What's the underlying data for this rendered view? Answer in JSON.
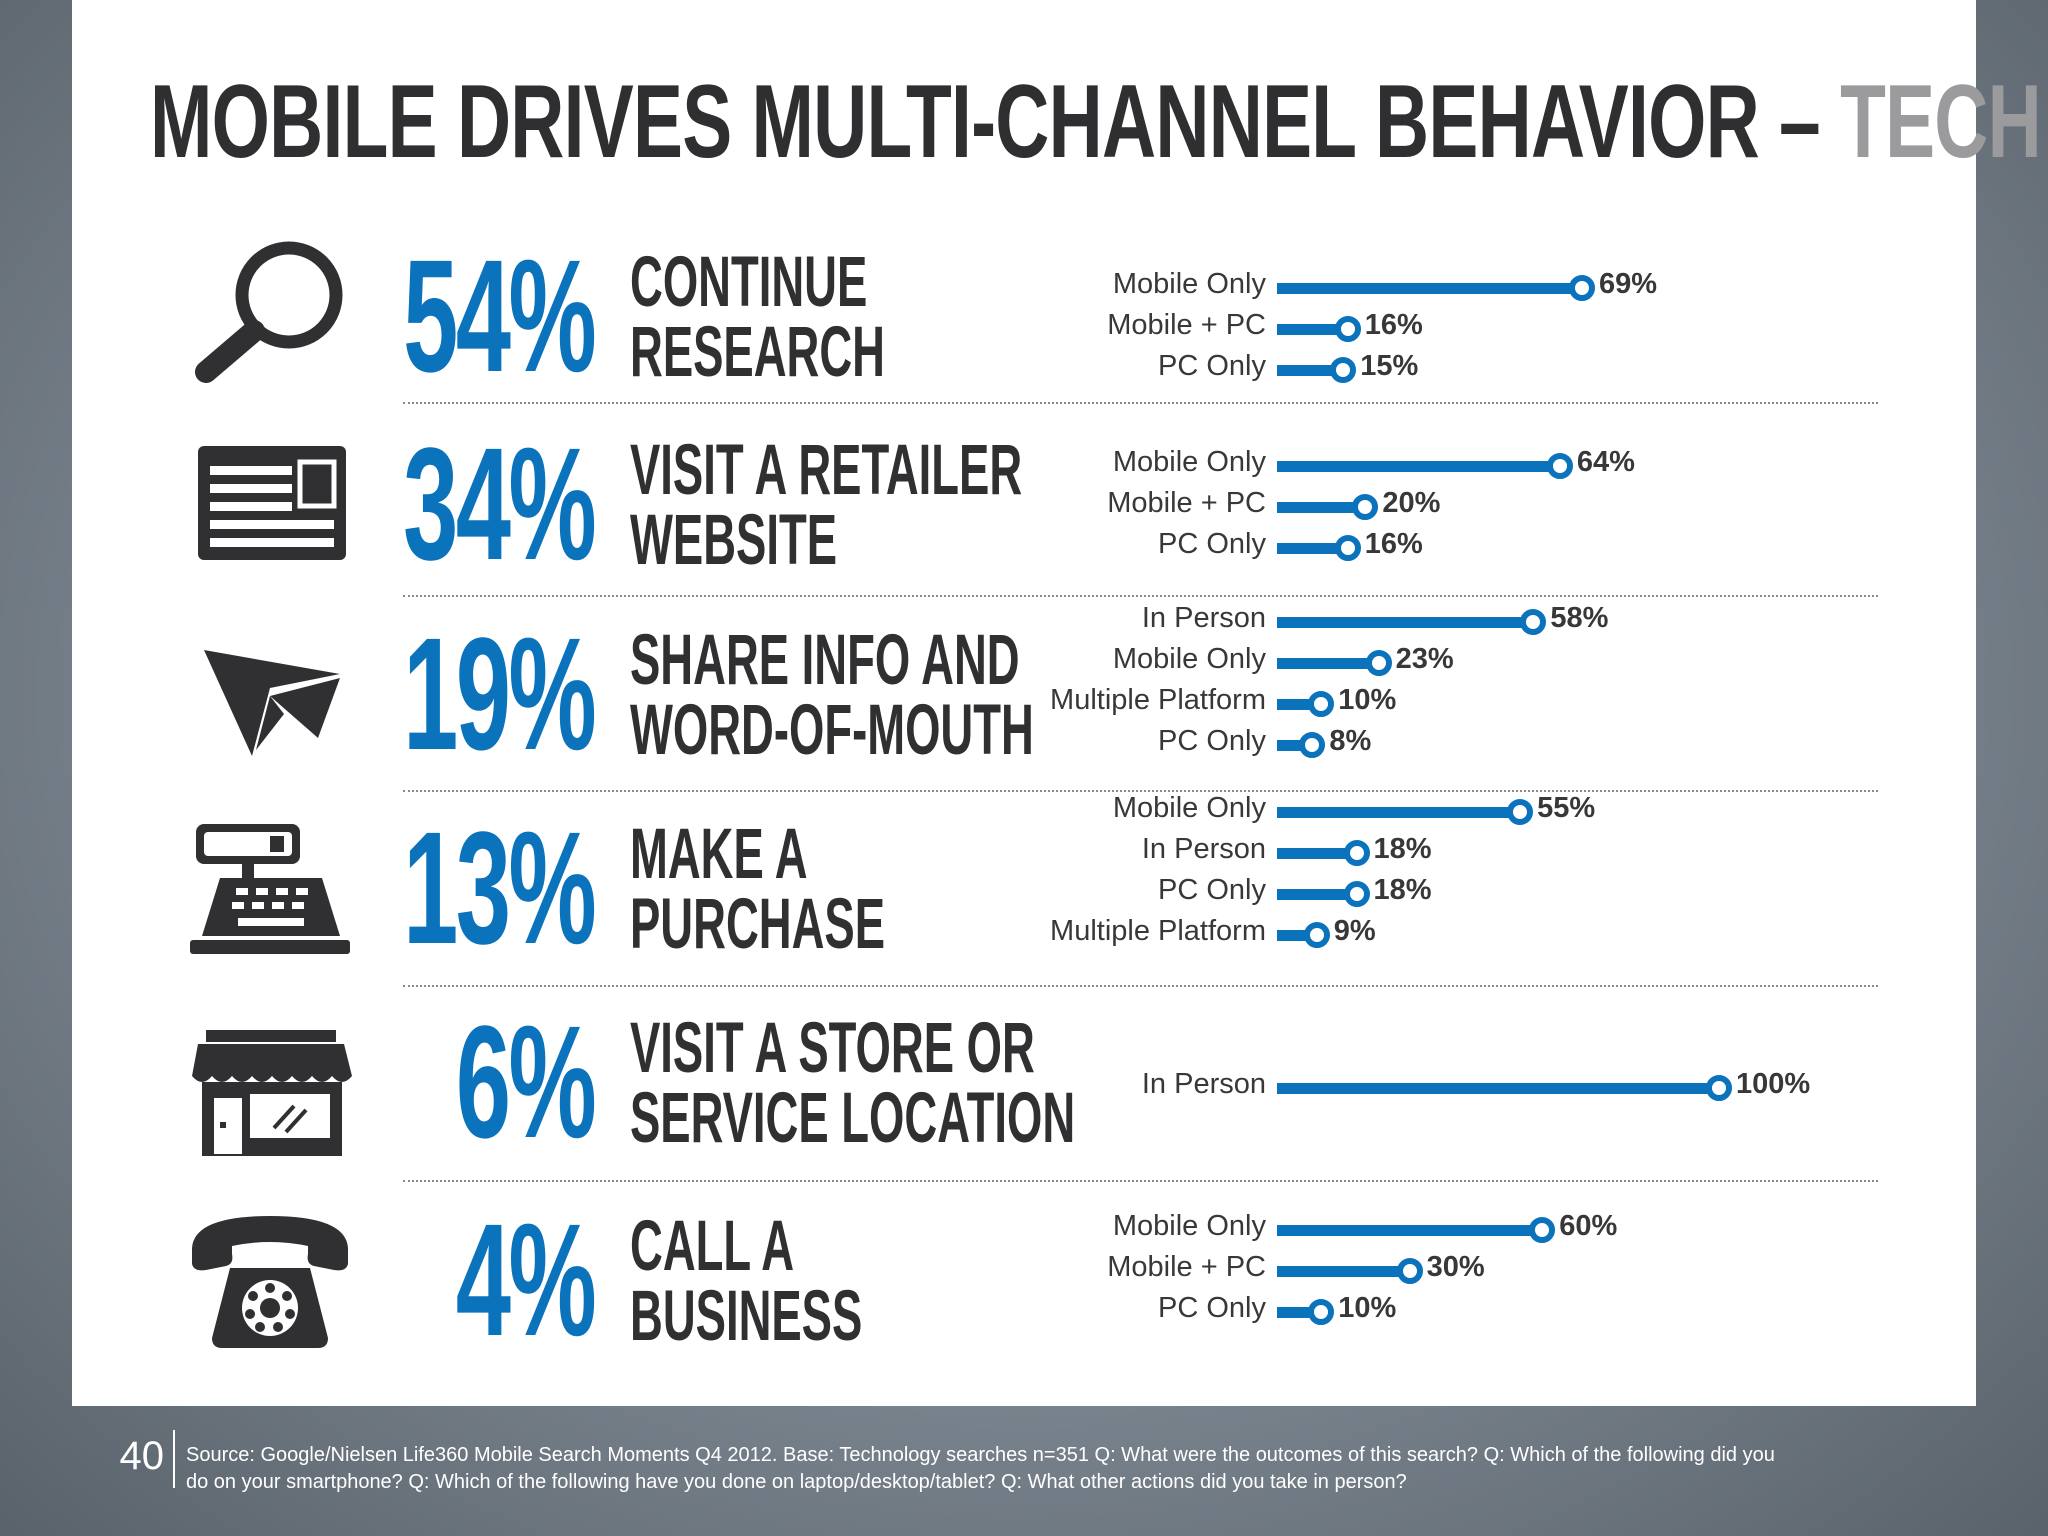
{
  "title": {
    "main": "MOBILE DRIVES MULTI-CHANNEL BEHAVIOR – ",
    "highlight": "TECH"
  },
  "colors": {
    "accent": "#0b72bc",
    "dark": "#303032",
    "grey": "#9b9b9d"
  },
  "rows": [
    {
      "icon": "magnifier-icon",
      "pct": "54%",
      "line1": "CONTINUE",
      "line2": "RESEARCH"
    },
    {
      "icon": "website-icon",
      "pct": "34%",
      "line1": "VISIT A RETAILER",
      "line2": "WEBSITE"
    },
    {
      "icon": "paper-plane-icon",
      "pct": "19%",
      "line1": "SHARE INFO AND",
      "line2": "WORD-OF-MOUTH"
    },
    {
      "icon": "cash-register-icon",
      "pct": "13%",
      "line1": "MAKE A",
      "line2": "PURCHASE"
    },
    {
      "icon": "storefront-icon",
      "pct": "6%",
      "line1": "VISIT A STORE OR",
      "line2": "SERVICE LOCATION"
    },
    {
      "icon": "telephone-icon",
      "pct": "4%",
      "line1": "CALL A",
      "line2": "BUSINESS"
    }
  ],
  "chart_data": [
    {
      "type": "bar",
      "orientation": "horizontal",
      "xlim": [
        0,
        100
      ],
      "categories": [
        "Mobile Only",
        "Mobile + PC",
        "PC Only"
      ],
      "values": [
        69,
        16,
        15
      ],
      "labels": [
        "69%",
        "16%",
        "15%"
      ]
    },
    {
      "type": "bar",
      "orientation": "horizontal",
      "xlim": [
        0,
        100
      ],
      "categories": [
        "Mobile Only",
        "Mobile + PC",
        "PC Only"
      ],
      "values": [
        64,
        20,
        16
      ],
      "labels": [
        "64%",
        "20%",
        "16%"
      ]
    },
    {
      "type": "bar",
      "orientation": "horizontal",
      "xlim": [
        0,
        100
      ],
      "categories": [
        "In Person",
        "Mobile Only",
        "Multiple Platform",
        "PC Only"
      ],
      "values": [
        58,
        23,
        10,
        8
      ],
      "labels": [
        "58%",
        "23%",
        "10%",
        "8%"
      ]
    },
    {
      "type": "bar",
      "orientation": "horizontal",
      "xlim": [
        0,
        100
      ],
      "categories": [
        "Mobile Only",
        "In Person",
        "PC Only",
        "Multiple Platform"
      ],
      "values": [
        55,
        18,
        18,
        9
      ],
      "labels": [
        "55%",
        "18%",
        "18%",
        "9%"
      ]
    },
    {
      "type": "bar",
      "orientation": "horizontal",
      "xlim": [
        0,
        100
      ],
      "categories": [
        "In Person"
      ],
      "values": [
        100
      ],
      "labels": [
        "100%"
      ]
    },
    {
      "type": "bar",
      "orientation": "horizontal",
      "xlim": [
        0,
        100
      ],
      "categories": [
        "Mobile Only",
        "Mobile + PC",
        "PC Only"
      ],
      "values": [
        60,
        30,
        10
      ],
      "labels": [
        "60%",
        "30%",
        "10%"
      ]
    }
  ],
  "footer": {
    "page_number": "40",
    "source_line1": "Source: Google/Nielsen Life360 Mobile Search Moments Q4 2012.  Base: Technology searches n=351 Q: What were the outcomes of this search? Q: Which of the following did you",
    "source_line2": "do on your smartphone? Q: Which of the following have you done on laptop/desktop/tablet? Q: What other actions did you take in person?"
  }
}
